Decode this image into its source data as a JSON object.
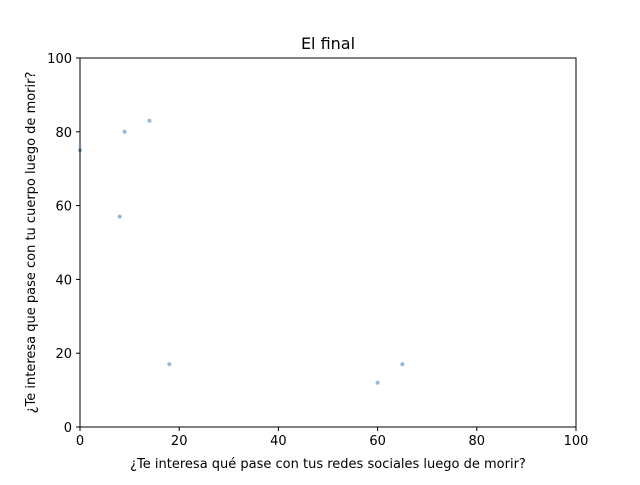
{
  "chart_data": {
    "type": "scatter",
    "title": "El final",
    "xlabel": "¿Te interesa qué pase con tus redes sociales luego de morir?",
    "ylabel": "¿Te interesa que pase con tu cuerpo luego de morir?",
    "xlim": [
      0,
      100
    ],
    "ylim": [
      0,
      100
    ],
    "xticks": [
      "0",
      "20",
      "40",
      "60",
      "80",
      "100"
    ],
    "yticks": [
      "0",
      "20",
      "40",
      "60",
      "80",
      "100"
    ],
    "grid": false,
    "series": [
      {
        "color": "#1f77b4",
        "alpha": 0.5,
        "points": [
          {
            "x": 0,
            "y": 75
          },
          {
            "x": 8,
            "y": 57
          },
          {
            "x": 9,
            "y": 80
          },
          {
            "x": 14,
            "y": 83
          },
          {
            "x": 18,
            "y": 17
          },
          {
            "x": 60,
            "y": 12
          },
          {
            "x": 65,
            "y": 17
          }
        ]
      }
    ]
  }
}
